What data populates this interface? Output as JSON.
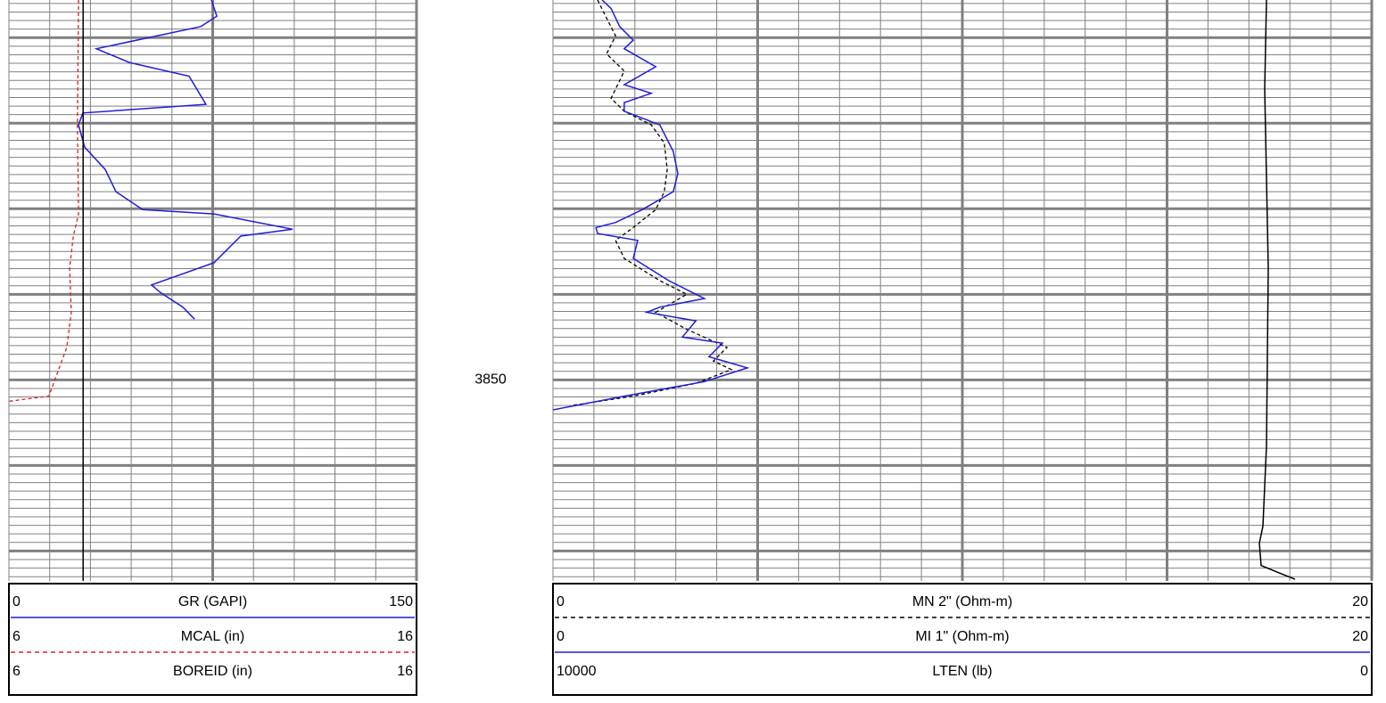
{
  "chart_data": {
    "type": "well-log",
    "ylim": [
      3805.6,
      3873.5
    ],
    "ygrid": [
      3806,
      3807,
      3808,
      3809,
      3810,
      3811,
      3812,
      3813,
      3814,
      3815,
      3816,
      3817,
      3818,
      3819,
      3820,
      3821,
      3822,
      3823,
      3824,
      3825,
      3826,
      3827,
      3828,
      3829,
      3830,
      3831,
      3832,
      3833,
      3834,
      3835,
      3836,
      3837,
      3838,
      3839,
      3840,
      3841,
      3842,
      3843,
      3844,
      3845,
      3846,
      3847,
      3848,
      3849,
      3850,
      3851,
      3852,
      3853,
      3854,
      3855,
      3856,
      3857,
      3858,
      3859,
      3860,
      3861,
      3862,
      3863,
      3864,
      3865,
      3866,
      3867,
      3868,
      3869,
      3870,
      3871,
      3872,
      3873
    ],
    "depth_labels": [
      3850
    ],
    "tracks": [
      {
        "xgrid": [
          0,
          15,
          30,
          45,
          60,
          75,
          90,
          105,
          120,
          135,
          150
        ],
        "series": [
          {
            "name": "GR (GAPI)",
            "color": "#1f1fd6",
            "dash": false,
            "xlim": [
              0,
              150
            ],
            "depth": [
              3805.6,
              3807.5,
              3808.7,
              3811.3,
              3812.9,
              3814.5,
              3817.8,
              3818.8,
              3820.2,
              3822.8,
              3825.4,
              3828.0,
              3830.1,
              3830.6,
              3832.4,
              3833.2,
              3836.3,
              3838.9,
              3839.8,
              3841.5,
              3842.9
            ],
            "values": [
              74.5,
              76.5,
              70.6,
              32.2,
              44.3,
              66.3,
              72.5,
              27.2,
              25.6,
              27.9,
              35.4,
              39.4,
              49.2,
              75.5,
              104.4,
              85.3,
              75.5,
              52.5,
              55.8,
              64.0,
              68.3
            ]
          },
          {
            "name": "MCAL (in)",
            "color": "#e02020",
            "dash": true,
            "xlim": [
              6,
              16
            ],
            "depth": [
              3805.6,
              3820.2,
              3830.6,
              3833.2,
              3836.9,
              3842.1,
              3846.2,
              3851.9,
              3852.5
            ],
            "values": [
              7.71,
              7.68,
              7.71,
              7.58,
              7.49,
              7.53,
              7.42,
              6.98,
              6.0
            ]
          },
          {
            "name": "BOREID (in)",
            "color": "#000000",
            "dash": false,
            "xlim": [
              6,
              16
            ],
            "depth": [
              3805.6,
              3873.5
            ],
            "values": [
              7.82,
              7.82
            ]
          }
        ]
      },
      {
        "xgrid": [
          0,
          1,
          2,
          3,
          4,
          5,
          6,
          7,
          8,
          9,
          10,
          11,
          12,
          13,
          14,
          15,
          16,
          17,
          18,
          19,
          20
        ],
        "series": [
          {
            "name": "MN 2\" (Ohm-m)",
            "color": "#000000",
            "dash": true,
            "xlim": [
              0,
              20
            ],
            "depth": [
              3805.6,
              3807.7,
              3809.8,
              3811.9,
              3813.9,
              3817.1,
              3818.6,
              3820.2,
              3822.3,
              3825.4,
              3828.0,
              3830.1,
              3832.2,
              3833.7,
              3835.8,
              3838.4,
              3840.0,
              3842.1,
              3844.1,
              3846.2,
              3847.8,
              3848.8,
              3850.4,
              3851.9,
              3853.0
            ],
            "values": [
              1.09,
              1.31,
              1.53,
              1.31,
              1.74,
              1.42,
              1.74,
              2.4,
              2.72,
              2.79,
              2.72,
              2.51,
              1.96,
              1.53,
              1.74,
              2.61,
              3.27,
              2.51,
              3.27,
              4.25,
              3.92,
              4.36,
              3.49,
              1.96,
              0.44
            ]
          },
          {
            "name": "MI 1\" (Ohm-m)",
            "color": "#1f1fd6",
            "dash": false,
            "xlim": [
              0,
              20
            ],
            "depth": [
              3805.6,
              3806.6,
              3808.7,
              3810.3,
              3811.3,
              3813.4,
              3815.5,
              3816.5,
              3817.6,
              3818.6,
              3820.2,
              3823.3,
              3825.9,
              3828.0,
              3830.1,
              3831.6,
              3832.2,
              3832.9,
              3833.7,
              3835.8,
              3838.4,
              3840.5,
              3841.5,
              3842.1,
              3843.1,
              3845.0,
              3845.7,
              3847.3,
              3848.6,
              3850.2,
              3851.9,
              3853.5
            ],
            "values": [
              1.2,
              1.42,
              1.63,
              1.96,
              1.74,
              2.51,
              1.74,
              2.4,
              1.74,
              1.74,
              2.61,
              2.94,
              3.05,
              2.94,
              2.18,
              1.53,
              1.05,
              1.09,
              2.07,
              1.96,
              2.83,
              3.7,
              2.61,
              2.29,
              3.49,
              3.16,
              4.14,
              3.81,
              4.75,
              3.7,
              1.74,
              0
            ]
          },
          {
            "name": "LTEN (lb)",
            "color": "#000000",
            "dash": false,
            "xlim": [
              10000,
              0
            ],
            "depth": [
              3805.6,
              3816.0,
              3836.9,
              3857.7,
              3867.1,
              3869.1,
              3871.7,
              3872.8,
              3873.3
            ],
            "values": [
              1285,
              1307,
              1264,
              1285,
              1329,
              1373,
              1351,
              1068,
              937
            ]
          }
        ]
      }
    ]
  }
}
